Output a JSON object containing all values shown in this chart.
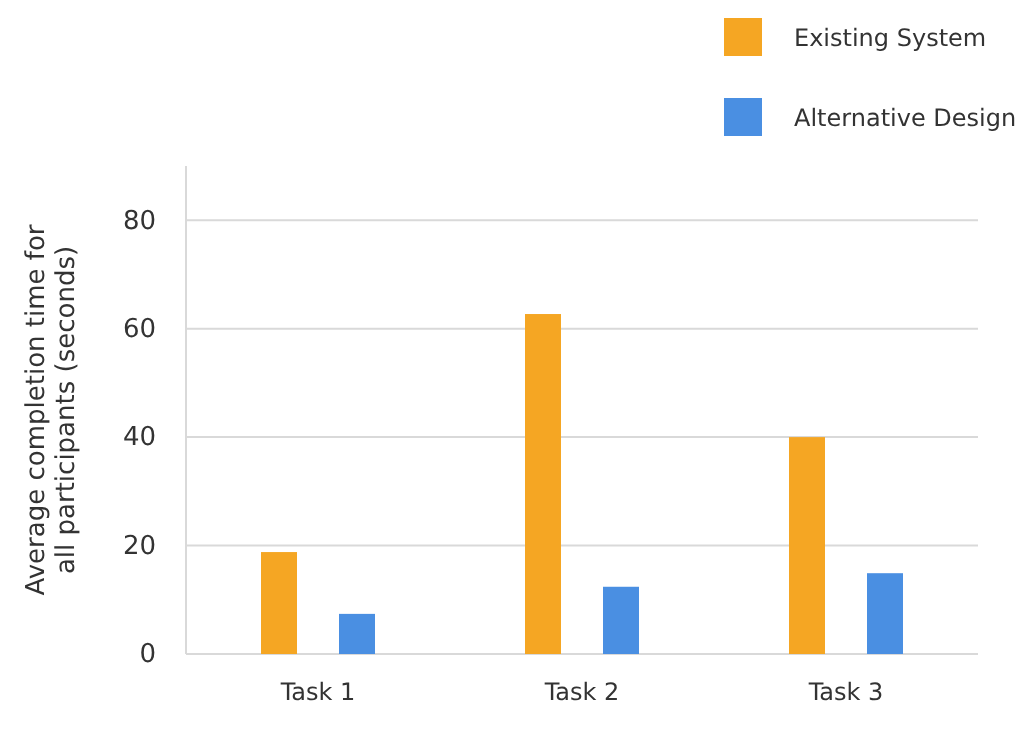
{
  "chart_data": {
    "type": "bar",
    "ylabel": "Average completion time for all participants (seconds)",
    "categories": [
      "Task 1",
      "Task 2",
      "Task 3"
    ],
    "series": [
      {
        "name": "Existing System",
        "color": "#f5a623",
        "values": [
          18.8,
          62.7,
          40
        ]
      },
      {
        "name": "Alternative Design",
        "color": "#4a8fe2",
        "values": [
          7.4,
          12.4,
          14.9
        ]
      }
    ],
    "ylim": [
      0,
      90
    ],
    "yticks": [
      0,
      20,
      40,
      60,
      80
    ],
    "grid": "y",
    "legend": "top right"
  }
}
